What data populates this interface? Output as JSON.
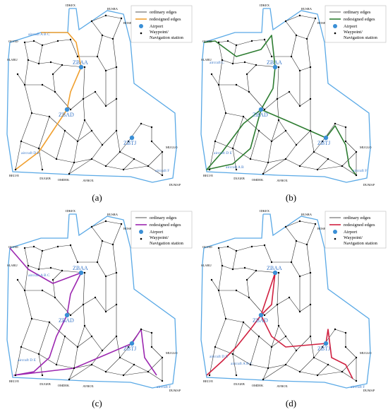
{
  "legend": {
    "ordinary": "ordinary edges",
    "redesigned": "redesigned edges",
    "airport": "Airport",
    "waypoint_line1": "Waypoint/",
    "waypoint_line2": "Navigation station"
  },
  "colors": {
    "boundary": "#5aa9e6",
    "ordinary": "#2b2b2b",
    "airport": "#3a8fd6",
    "label_blue": "#3a78c9"
  },
  "airports": {
    "north": "ZBAA",
    "center": "ZBAD",
    "east": "ZBTJ"
  },
  "boundary_waypoints": {
    "b1": "IDKEX",
    "b2": "RUSRA",
    "b3": "BOSRU",
    "b4": "OLVID",
    "b5": "SLARU",
    "b6": "MUGLO",
    "b7": "BELVE",
    "b8": "DUGEB",
    "b9": "OMDEK",
    "b10": "AVBOX",
    "b11": "DUMAP"
  },
  "panels": [
    {
      "caption": "(a)",
      "color": "#f0a030",
      "labels": [
        "aircraft A B C",
        "aircraft D E",
        "aircraft F"
      ]
    },
    {
      "caption": "(b)",
      "color": "#2e7d32",
      "labels": [
        "aircraft C",
        "aircraft D E",
        "aircraft A B",
        "aircraft F"
      ]
    },
    {
      "caption": "(c)",
      "color": "#9c27b0",
      "labels": [
        "aircraft A B C",
        "aircraft D E",
        "aircraft F"
      ]
    },
    {
      "caption": "(d)",
      "color": "#d02040",
      "labels": [
        "aircraft D E",
        "aircraft A B C",
        "aircraft F"
      ]
    }
  ]
}
